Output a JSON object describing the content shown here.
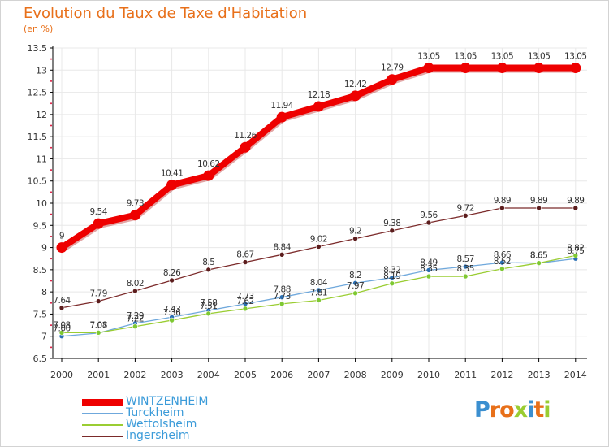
{
  "header": {
    "title": "Evolution du Taux de Taxe d'Habitation",
    "subtitle": "(en %)"
  },
  "brand": {
    "logo_text": "Proxiti",
    "logo_letters": [
      {
        "ch": "P",
        "color": "#3b8fd0"
      },
      {
        "ch": "r",
        "color": "#e8701a"
      },
      {
        "ch": "o",
        "color": "#e8701a"
      },
      {
        "ch": "x",
        "color": "#9acd32"
      },
      {
        "ch": "i",
        "color": "#3b8fd0"
      },
      {
        "ch": "t",
        "color": "#e8701a"
      },
      {
        "ch": "i",
        "color": "#9acd32"
      }
    ]
  },
  "colors": {
    "axis": "#000000",
    "grid": "#e8e8e8",
    "tick_text": "#333333",
    "value_text": "#333333",
    "left_dots": "#dc143c"
  },
  "chart_data": {
    "type": "line",
    "title": "Evolution du Taux de Taxe d'Habitation",
    "subtitle": "(en %)",
    "xlabel": "",
    "ylabel": "",
    "x": [
      "2000",
      "2001",
      "2002",
      "2003",
      "2004",
      "2005",
      "2006",
      "2007",
      "2008",
      "2009",
      "2010",
      "2011",
      "2012",
      "2013",
      "2014"
    ],
    "ylim": [
      6.5,
      13.5
    ],
    "yticks": [
      "6.5",
      "7",
      "7.5",
      "8",
      "8.5",
      "9",
      "9.5",
      "10",
      "10.5",
      "11",
      "11.5",
      "12",
      "12.5",
      "13",
      "13.5"
    ],
    "grid": true,
    "legend_position": "bottom-left",
    "series": [
      {
        "name": "WINTZENHEIM",
        "color": "#ee0000",
        "marker_color": "#ee0000",
        "width": "thick",
        "values": [
          9,
          9.54,
          9.73,
          10.41,
          10.62,
          11.26,
          11.94,
          12.18,
          12.42,
          12.79,
          13.05,
          13.05,
          13.05,
          13.05,
          13.05
        ],
        "labels": [
          "9",
          "9.54",
          "9.73",
          "10.41",
          "10.62",
          "11.26",
          "11.94",
          "12.18",
          "12.42",
          "12.79",
          "13.05",
          "13.05",
          "13.05",
          "13.05",
          "13.05"
        ]
      },
      {
        "name": "Turckheim",
        "color": "#6fa8dc",
        "marker_color": "#2a6fb3",
        "width": "thin",
        "values": [
          7.0,
          7.07,
          7.29,
          7.43,
          7.58,
          7.73,
          7.88,
          8.04,
          8.2,
          8.32,
          8.49,
          8.57,
          8.66,
          8.65,
          8.75
        ],
        "labels": [
          "7.00",
          "7.07",
          "7.29",
          "7.43",
          "7.58",
          "7.73",
          "7.88",
          "8.04",
          "8.2",
          "8.32",
          "8.49",
          "8.57",
          "8.66",
          "8.65",
          "8.75"
        ]
      },
      {
        "name": "Wettolsheim",
        "color": "#9acd32",
        "marker_color": "#7ec832",
        "width": "thin",
        "values": [
          7.08,
          7.08,
          7.22,
          7.36,
          7.51,
          7.62,
          7.73,
          7.81,
          7.97,
          8.19,
          8.35,
          8.35,
          8.52,
          8.65,
          8.82
        ],
        "labels": [
          "7.08",
          "7.08",
          "7.22",
          "7.36",
          "7.51",
          "7.62",
          "7.73",
          "7.81",
          "7.97",
          "8.19",
          "8.35",
          "8.35",
          "8.52",
          "8.65",
          "8.82"
        ]
      },
      {
        "name": "Ingersheim",
        "color": "#7b2a2a",
        "marker_color": "#5c1d1d",
        "width": "thin",
        "values": [
          7.64,
          7.79,
          8.02,
          8.26,
          8.5,
          8.67,
          8.84,
          9.02,
          9.2,
          9.38,
          9.56,
          9.72,
          9.89,
          9.89,
          9.89
        ],
        "labels": [
          "7.64",
          "7.79",
          "8.02",
          "8.26",
          "8.5",
          "8.67",
          "8.84",
          "9.02",
          "9.2",
          "9.38",
          "9.56",
          "9.72",
          "9.89",
          "9.89",
          "9.89"
        ]
      }
    ]
  }
}
